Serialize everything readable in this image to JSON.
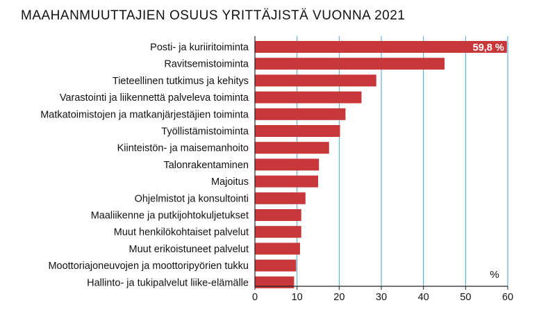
{
  "chart_data": {
    "type": "bar",
    "orientation": "horizontal",
    "title": "MAAHANMUUTTAJIEN OSUUS YRITTÄJISTÄ VUONNA 2021",
    "unit_label": "%",
    "xlim": [
      0,
      60
    ],
    "x_ticks": [
      "0",
      "10",
      "20",
      "30",
      "40",
      "50",
      "60"
    ],
    "grid": true,
    "bar_color": "#c8373a",
    "grid_color": "#4aa3d6",
    "categories": [
      "Posti- ja kuriiritoiminta",
      "Ravitsemistoiminta",
      "Tieteellinen tutkimus ja kehitys",
      "Varastointi ja liikennettä palveleva toiminta",
      "Matkatoimistojen ja matkanjärjestäjien toiminta",
      "Työllistämistoiminta",
      "Kiinteistön- ja maisemanhoito",
      "Talonrakentaminen",
      "Majoitus",
      "Ohjelmistot ja konsultointi",
      "Maaliikenne ja putkijohtokuljetukset",
      "Muut henkilökohtaiset palvelut",
      "Muut erikoistuneet palvelut",
      "Moottoriajoneuvojen ja moottoripyörien tukku",
      "Hallinto- ja tukipalvelut liike-elämälle"
    ],
    "values": [
      59.8,
      45.0,
      28.8,
      25.3,
      21.5,
      20.2,
      17.6,
      15.2,
      15.0,
      12.0,
      11.0,
      11.0,
      10.7,
      9.8,
      9.3
    ],
    "value_labels": [
      "59,8 %"
    ]
  }
}
